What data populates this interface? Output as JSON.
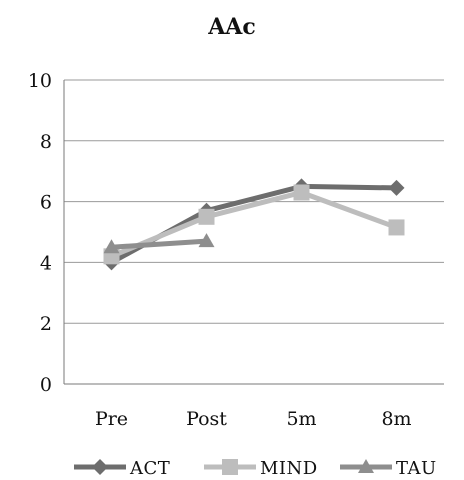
{
  "chart_data": {
    "type": "line",
    "title": "AAc",
    "xlabel": "",
    "ylabel": "",
    "categories": [
      "Pre",
      "Post",
      "5m",
      "8m"
    ],
    "ylim": [
      0,
      10
    ],
    "yticks": [
      0,
      2,
      4,
      6,
      8,
      10
    ],
    "grid": true,
    "legend": "bottom",
    "series": [
      {
        "name": "ACT",
        "values": [
          4.0,
          5.7,
          6.5,
          6.45
        ],
        "color": "#6d6d6d",
        "marker": "diamond"
      },
      {
        "name": "MIND",
        "values": [
          4.2,
          5.5,
          6.3,
          5.15
        ],
        "color": "#bdbdbd",
        "marker": "square"
      },
      {
        "name": "TAU",
        "values": [
          4.5,
          4.7,
          null,
          null
        ],
        "color": "#8e8e8e",
        "marker": "triangle"
      }
    ]
  }
}
